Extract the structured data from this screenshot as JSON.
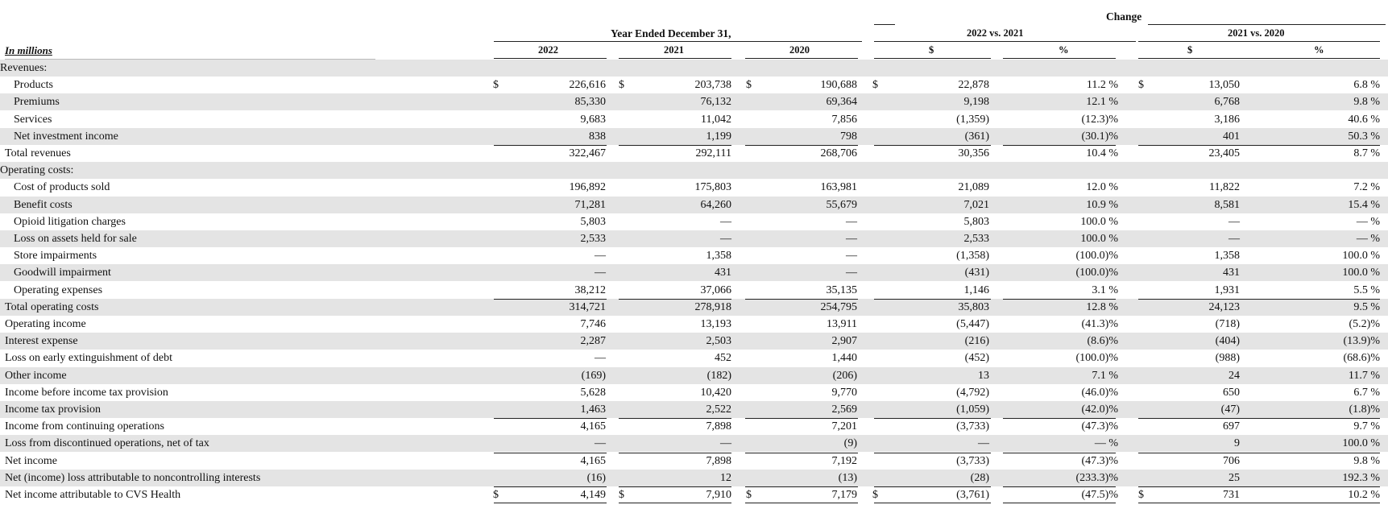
{
  "header": {
    "units": "In millions",
    "change": "Change",
    "year_ended": "Year Ended December 31,",
    "col_2022": "2022",
    "col_2021": "2021",
    "col_2020": "2020",
    "vs_2022_2021": "2022 vs. 2021",
    "vs_2021_2020": "2021 vs. 2020",
    "dollar": "$",
    "percent": "%"
  },
  "rows": [
    {
      "label": "Revenues:",
      "type": "section",
      "shade": true,
      "vals": [
        "",
        "",
        "",
        "",
        "",
        "",
        ""
      ],
      "dollar": false
    },
    {
      "label": "Products",
      "type": "item",
      "shade": false,
      "vals": [
        "226,616",
        "203,738",
        "190,688",
        "22,878",
        "11.2 %",
        "13,050",
        "6.8 %"
      ],
      "dollar": true
    },
    {
      "label": "Premiums",
      "type": "item",
      "shade": true,
      "vals": [
        "85,330",
        "76,132",
        "69,364",
        "9,198",
        "12.1 %",
        "6,768",
        "9.8 %"
      ],
      "dollar": false
    },
    {
      "label": "Services",
      "type": "item",
      "shade": false,
      "vals": [
        "9,683",
        "11,042",
        "7,856",
        "(1,359)",
        "(12.3)%",
        "3,186",
        "40.6 %"
      ],
      "dollar": false
    },
    {
      "label": "Net investment income",
      "type": "item",
      "shade": true,
      "vals": [
        "838",
        "1,199",
        "798",
        "(361)",
        "(30.1)%",
        "401",
        "50.3 %"
      ],
      "dollar": false
    },
    {
      "label": "Total revenues",
      "type": "total",
      "shade": false,
      "vals": [
        "322,467",
        "292,111",
        "268,706",
        "30,356",
        "10.4 %",
        "23,405",
        "8.7 %"
      ],
      "dollar": false
    },
    {
      "label": "Operating costs:",
      "type": "section",
      "shade": true,
      "vals": [
        "",
        "",
        "",
        "",
        "",
        "",
        ""
      ],
      "dollar": false
    },
    {
      "label": "Cost of products sold",
      "type": "item",
      "shade": false,
      "vals": [
        "196,892",
        "175,803",
        "163,981",
        "21,089",
        "12.0 %",
        "11,822",
        "7.2 %"
      ],
      "dollar": false
    },
    {
      "label": "Benefit costs",
      "type": "item",
      "shade": true,
      "vals": [
        "71,281",
        "64,260",
        "55,679",
        "7,021",
        "10.9 %",
        "8,581",
        "15.4 %"
      ],
      "dollar": false
    },
    {
      "label": "Opioid litigation charges",
      "type": "item",
      "shade": false,
      "vals": [
        "5,803",
        "—",
        "—",
        "5,803",
        "100.0 %",
        "—",
        "— %"
      ],
      "dollar": false
    },
    {
      "label": "Loss on assets held for sale",
      "type": "item",
      "shade": true,
      "vals": [
        "2,533",
        "—",
        "—",
        "2,533",
        "100.0 %",
        "—",
        "— %"
      ],
      "dollar": false
    },
    {
      "label": "Store impairments",
      "type": "item",
      "shade": false,
      "vals": [
        "—",
        "1,358",
        "—",
        "(1,358)",
        "(100.0)%",
        "1,358",
        "100.0 %"
      ],
      "dollar": false
    },
    {
      "label": "Goodwill impairment",
      "type": "item",
      "shade": true,
      "vals": [
        "—",
        "431",
        "—",
        "(431)",
        "(100.0)%",
        "431",
        "100.0 %"
      ],
      "dollar": false
    },
    {
      "label": "Operating expenses",
      "type": "item",
      "shade": false,
      "vals": [
        "38,212",
        "37,066",
        "35,135",
        "1,146",
        "3.1 %",
        "1,931",
        "5.5 %"
      ],
      "dollar": false
    },
    {
      "label": "Total operating costs",
      "type": "total",
      "shade": true,
      "vals": [
        "314,721",
        "278,918",
        "254,795",
        "35,803",
        "12.8 %",
        "24,123",
        "9.5 %"
      ],
      "dollar": false
    },
    {
      "label": "Operating income",
      "type": "total",
      "shade": false,
      "vals": [
        "7,746",
        "13,193",
        "13,911",
        "(5,447)",
        "(41.3)%",
        "(718)",
        "(5.2)%"
      ],
      "dollar": false
    },
    {
      "label": "Interest expense",
      "type": "total",
      "shade": true,
      "vals": [
        "2,287",
        "2,503",
        "2,907",
        "(216)",
        "(8.6)%",
        "(404)",
        "(13.9)%"
      ],
      "dollar": false
    },
    {
      "label": "Loss on early extinguishment of debt",
      "type": "total",
      "shade": false,
      "vals": [
        "—",
        "452",
        "1,440",
        "(452)",
        "(100.0)%",
        "(988)",
        "(68.6)%"
      ],
      "dollar": false
    },
    {
      "label": "Other income",
      "type": "total",
      "shade": true,
      "vals": [
        "(169)",
        "(182)",
        "(206)",
        "13",
        "7.1 %",
        "24",
        "11.7 %"
      ],
      "dollar": false
    },
    {
      "label": "Income before income tax provision",
      "type": "total",
      "shade": false,
      "vals": [
        "5,628",
        "10,420",
        "9,770",
        "(4,792)",
        "(46.0)%",
        "650",
        "6.7 %"
      ],
      "dollar": false
    },
    {
      "label": "Income tax provision",
      "type": "total",
      "shade": true,
      "vals": [
        "1,463",
        "2,522",
        "2,569",
        "(1,059)",
        "(42.0)%",
        "(47)",
        "(1.8)%"
      ],
      "dollar": false
    },
    {
      "label": "Income from continuing operations",
      "type": "total",
      "shade": false,
      "vals": [
        "4,165",
        "7,898",
        "7,201",
        "(3,733)",
        "(47.3)%",
        "697",
        "9.7 %"
      ],
      "dollar": false
    },
    {
      "label": "Loss from discontinued operations, net of tax",
      "type": "total",
      "shade": true,
      "vals": [
        "—",
        "—",
        "(9)",
        "—",
        "— %",
        "9",
        "100.0 %"
      ],
      "dollar": false
    },
    {
      "label": "Net income",
      "type": "total",
      "shade": false,
      "vals": [
        "4,165",
        "7,898",
        "7,192",
        "(3,733)",
        "(47.3)%",
        "706",
        "9.8 %"
      ],
      "dollar": false
    },
    {
      "label": "Net (income) loss attributable to noncontrolling interests",
      "type": "total",
      "shade": true,
      "vals": [
        "(16)",
        "12",
        "(13)",
        "(28)",
        "(233.3)%",
        "25",
        "192.3 %"
      ],
      "dollar": false
    },
    {
      "label": "Net income attributable to CVS Health",
      "type": "total",
      "shade": false,
      "vals": [
        "4,149",
        "7,910",
        "7,179",
        "(3,761)",
        "(47.5)%",
        "731",
        "10.2 %"
      ],
      "dollar": true
    }
  ]
}
